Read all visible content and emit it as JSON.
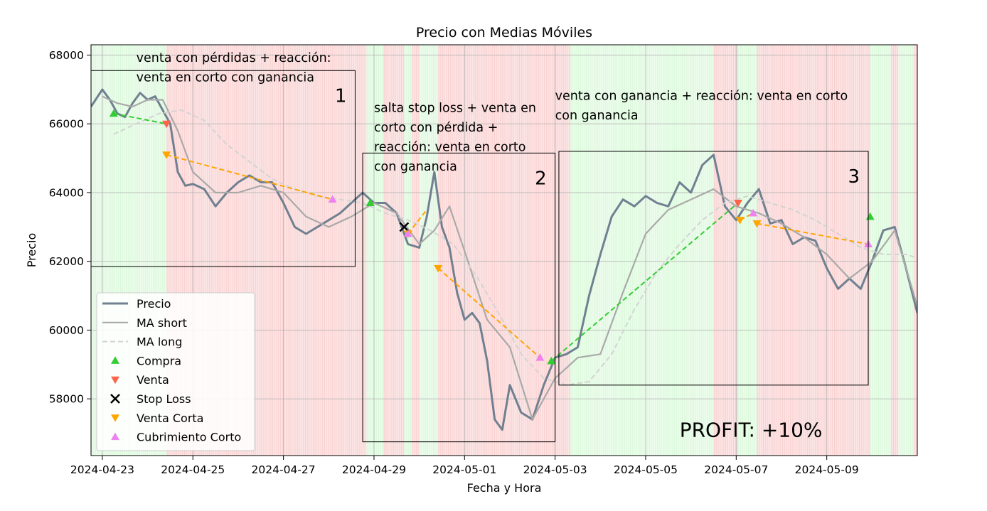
{
  "chart_data": {
    "type": "line",
    "title": "Precio con Medias Móviles",
    "xlabel": "Fecha y Hora",
    "ylabel": "Precio",
    "xlim": [
      "2024-04-22T18:00",
      "2024-05-11T00:00"
    ],
    "ylim": [
      56350,
      68300
    ],
    "grid": true,
    "legend_position": "lower-left",
    "x_ticks": [
      "2024-04-23",
      "2024-04-25",
      "2024-04-27",
      "2024-04-29",
      "2024-05-01",
      "2024-05-03",
      "2024-05-05",
      "2024-05-07",
      "2024-05-09"
    ],
    "y_ticks": [
      58000,
      60000,
      62000,
      64000,
      66000,
      68000
    ],
    "colors": {
      "price": "#708090",
      "ma_short": "#a9a9a9",
      "ma_long": "#d3d3d3",
      "buy": "#32cd32",
      "sell": "#ff6347",
      "stop_loss": "#000000",
      "short_sell": "#ffa500",
      "short_cover": "#ee82ee",
      "long_trade": "#32cd32",
      "short_trade": "#ffa500",
      "bg_green": "#90ee90",
      "bg_red": "#f08080"
    },
    "background_regions": [
      {
        "signal": "buy",
        "start": "2024-04-22T18:00",
        "end": "2024-04-24T10:00"
      },
      {
        "signal": "sell",
        "start": "2024-04-24T10:00",
        "end": "2024-04-28T20:00"
      },
      {
        "signal": "buy",
        "start": "2024-04-28T20:00",
        "end": "2024-04-29T05:00"
      },
      {
        "signal": "sell",
        "start": "2024-04-29T05:00",
        "end": "2024-04-29T16:00"
      },
      {
        "signal": "buy",
        "start": "2024-04-29T16:00",
        "end": "2024-04-29T20:00"
      },
      {
        "signal": "sell",
        "start": "2024-04-29T20:00",
        "end": "2024-04-30T00:00"
      },
      {
        "signal": "buy",
        "start": "2024-04-30T00:00",
        "end": "2024-04-30T10:00"
      },
      {
        "signal": "sell",
        "start": "2024-04-30T10:00",
        "end": "2024-05-03T08:00"
      },
      {
        "signal": "buy",
        "start": "2024-05-03T08:00",
        "end": "2024-05-06T12:00"
      },
      {
        "signal": "sell",
        "start": "2024-05-06T12:00",
        "end": "2024-05-07T01:00"
      },
      {
        "signal": "buy",
        "start": "2024-05-07T01:00",
        "end": "2024-05-07T11:00"
      },
      {
        "signal": "sell",
        "start": "2024-05-07T11:00",
        "end": "2024-05-09T23:00"
      },
      {
        "signal": "buy",
        "start": "2024-05-09T23:00",
        "end": "2024-05-10T10:00"
      },
      {
        "signal": "sell",
        "start": "2024-05-10T10:00",
        "end": "2024-05-10T14:00"
      },
      {
        "signal": "buy",
        "start": "2024-05-10T14:00",
        "end": "2024-05-10T22:00"
      },
      {
        "signal": "sell",
        "start": "2024-05-10T22:00",
        "end": "2024-05-11T00:00"
      }
    ],
    "series": [
      {
        "name": "Precio",
        "style": "solid-thick",
        "x": [
          "2024-04-22T18:00",
          "2024-04-23T00:00",
          "2024-04-23T04:00",
          "2024-04-23T08:00",
          "2024-04-23T12:00",
          "2024-04-23T16:00",
          "2024-04-23T20:00",
          "2024-04-24T00:00",
          "2024-04-24T04:00",
          "2024-04-24T08:00",
          "2024-04-24T12:00",
          "2024-04-24T16:00",
          "2024-04-24T20:00",
          "2024-04-25T00:00",
          "2024-04-25T06:00",
          "2024-04-25T12:00",
          "2024-04-25T18:00",
          "2024-04-26T00:00",
          "2024-04-26T06:00",
          "2024-04-26T12:00",
          "2024-04-26T18:00",
          "2024-04-27T00:00",
          "2024-04-27T06:00",
          "2024-04-27T12:00",
          "2024-04-27T18:00",
          "2024-04-28T00:00",
          "2024-04-28T06:00",
          "2024-04-28T12:00",
          "2024-04-28T18:00",
          "2024-04-29T00:00",
          "2024-04-29T06:00",
          "2024-04-29T12:00",
          "2024-04-29T18:00",
          "2024-04-30T00:00",
          "2024-04-30T04:00",
          "2024-04-30T08:00",
          "2024-04-30T12:00",
          "2024-04-30T16:00",
          "2024-04-30T20:00",
          "2024-05-01T00:00",
          "2024-05-01T04:00",
          "2024-05-01T08:00",
          "2024-05-01T12:00",
          "2024-05-01T16:00",
          "2024-05-01T20:00",
          "2024-05-02T00:00",
          "2024-05-02T06:00",
          "2024-05-02T12:00",
          "2024-05-02T18:00",
          "2024-05-03T00:00",
          "2024-05-03T06:00",
          "2024-05-03T12:00",
          "2024-05-03T18:00",
          "2024-05-04T00:00",
          "2024-05-04T06:00",
          "2024-05-04T12:00",
          "2024-05-04T18:00",
          "2024-05-05T00:00",
          "2024-05-05T06:00",
          "2024-05-05T12:00",
          "2024-05-05T18:00",
          "2024-05-06T00:00",
          "2024-05-06T06:00",
          "2024-05-06T12:00",
          "2024-05-06T18:00",
          "2024-05-07T00:00",
          "2024-05-07T06:00",
          "2024-05-07T12:00",
          "2024-05-07T18:00",
          "2024-05-08T00:00",
          "2024-05-08T06:00",
          "2024-05-08T12:00",
          "2024-05-08T18:00",
          "2024-05-09T00:00",
          "2024-05-09T06:00",
          "2024-05-09T12:00",
          "2024-05-09T18:00",
          "2024-05-10T00:00",
          "2024-05-10T06:00",
          "2024-05-10T12:00",
          "2024-05-10T18:00",
          "2024-05-11T00:00"
        ],
        "values": [
          66500,
          67000,
          66700,
          66300,
          66200,
          66600,
          66900,
          66700,
          66800,
          66400,
          66000,
          64600,
          64200,
          64250,
          64100,
          63600,
          64000,
          64300,
          64500,
          64300,
          64300,
          63700,
          63000,
          62800,
          63000,
          63200,
          63400,
          63700,
          64000,
          63700,
          63700,
          63400,
          62500,
          62400,
          63300,
          64600,
          63000,
          62400,
          61100,
          60300,
          60500,
          60200,
          59100,
          57400,
          57100,
          58400,
          57600,
          57400,
          58400,
          59200,
          59300,
          59500,
          61000,
          62200,
          63300,
          63800,
          63600,
          63900,
          63700,
          63600,
          64300,
          64000,
          64800,
          65100,
          63600,
          63200,
          63700,
          64100,
          63100,
          63200,
          62500,
          62700,
          62600,
          61800,
          61200,
          61500,
          61200,
          62000,
          62900,
          63000,
          61800,
          60500
        ]
      },
      {
        "name": "MA short",
        "style": "solid",
        "x": [
          "2024-04-23T00:00",
          "2024-04-23T08:00",
          "2024-04-23T16:00",
          "2024-04-24T00:00",
          "2024-04-24T08:00",
          "2024-04-24T16:00",
          "2024-04-25T00:00",
          "2024-04-25T12:00",
          "2024-04-26T00:00",
          "2024-04-26T12:00",
          "2024-04-27T00:00",
          "2024-04-27T12:00",
          "2024-04-28T00:00",
          "2024-04-28T12:00",
          "2024-04-29T00:00",
          "2024-04-29T12:00",
          "2024-04-30T00:00",
          "2024-04-30T08:00",
          "2024-04-30T16:00",
          "2024-05-01T00:00",
          "2024-05-01T12:00",
          "2024-05-02T00:00",
          "2024-05-02T12:00",
          "2024-05-03T00:00",
          "2024-05-03T12:00",
          "2024-05-04T00:00",
          "2024-05-04T12:00",
          "2024-05-05T00:00",
          "2024-05-05T12:00",
          "2024-05-06T00:00",
          "2024-05-06T12:00",
          "2024-05-07T00:00",
          "2024-05-07T12:00",
          "2024-05-08T00:00",
          "2024-05-08T12:00",
          "2024-05-09T00:00",
          "2024-05-09T12:00",
          "2024-05-10T00:00",
          "2024-05-10T12:00",
          "2024-05-11T00:00"
        ],
        "values": [
          66800,
          66600,
          66500,
          66700,
          66700,
          65800,
          64600,
          64000,
          64000,
          64200,
          64000,
          63300,
          63000,
          63300,
          63700,
          63400,
          62500,
          62900,
          63600,
          62300,
          60300,
          59500,
          57400,
          58600,
          59200,
          59300,
          61100,
          62800,
          63500,
          63800,
          64100,
          63600,
          63400,
          63100,
          62700,
          62200,
          61500,
          62000,
          62900,
          60700
        ]
      },
      {
        "name": "MA long",
        "style": "dashed",
        "x": [
          "2024-04-23T06:00",
          "2024-04-23T18:00",
          "2024-04-24T06:00",
          "2024-04-24T18:00",
          "2024-04-25T06:00",
          "2024-04-25T18:00",
          "2024-04-26T06:00",
          "2024-04-26T18:00",
          "2024-04-27T06:00",
          "2024-04-27T18:00",
          "2024-04-28T06:00",
          "2024-04-28T18:00",
          "2024-04-29T06:00",
          "2024-04-29T18:00",
          "2024-04-30T06:00",
          "2024-04-30T18:00",
          "2024-05-01T06:00",
          "2024-05-01T18:00",
          "2024-05-02T06:00",
          "2024-05-02T18:00",
          "2024-05-03T06:00",
          "2024-05-03T18:00",
          "2024-05-04T06:00",
          "2024-05-04T18:00",
          "2024-05-05T06:00",
          "2024-05-05T18:00",
          "2024-05-06T06:00",
          "2024-05-06T18:00",
          "2024-05-07T06:00",
          "2024-05-07T18:00",
          "2024-05-08T06:00",
          "2024-05-08T18:00",
          "2024-05-09T06:00",
          "2024-05-09T18:00",
          "2024-05-10T06:00",
          "2024-05-10T18:00",
          "2024-05-11T00:00"
        ],
        "values": [
          65700,
          66000,
          66300,
          66400,
          66100,
          65400,
          64900,
          64400,
          64100,
          63900,
          63800,
          63700,
          63400,
          63200,
          62900,
          62500,
          61600,
          60500,
          59300,
          58600,
          58400,
          58500,
          59300,
          60600,
          61700,
          62500,
          63200,
          63700,
          63900,
          63700,
          63500,
          63200,
          62800,
          62400,
          62200,
          62200,
          62100
        ]
      }
    ],
    "markers": [
      {
        "name": "Compra",
        "symbol": "triangle-up",
        "points": [
          {
            "x": "2024-04-23T06:00",
            "y": 66300
          },
          {
            "x": "2024-04-28T22:00",
            "y": 63700
          },
          {
            "x": "2024-05-02T22:00",
            "y": 59100
          },
          {
            "x": "2024-05-09T23:00",
            "y": 63300
          }
        ]
      },
      {
        "name": "Venta",
        "symbol": "triangle-down",
        "points": [
          {
            "x": "2024-04-24T10:00",
            "y": 66000
          },
          {
            "x": "2024-05-07T01:00",
            "y": 63700
          }
        ]
      },
      {
        "name": "Stop Loss",
        "symbol": "x",
        "points": [
          {
            "x": "2024-04-29T16:00",
            "y": 63000
          }
        ]
      },
      {
        "name": "Venta Corta",
        "symbol": "triangle-down",
        "points": [
          {
            "x": "2024-04-24T10:00",
            "y": 65100
          },
          {
            "x": "2024-04-29T18:00",
            "y": 62800
          },
          {
            "x": "2024-04-30T10:00",
            "y": 61800
          },
          {
            "x": "2024-05-07T02:00",
            "y": 63200
          },
          {
            "x": "2024-05-07T11:00",
            "y": 63100
          }
        ]
      },
      {
        "name": "Cubrimiento Corto",
        "symbol": "triangle-up",
        "points": [
          {
            "x": "2024-04-28T02:00",
            "y": 63800
          },
          {
            "x": "2024-04-29T18:00",
            "y": 62800
          },
          {
            "x": "2024-05-02T16:00",
            "y": 59200
          },
          {
            "x": "2024-05-07T09:00",
            "y": 63400
          },
          {
            "x": "2024-05-09T22:00",
            "y": 62500
          }
        ]
      }
    ],
    "trades": [
      {
        "type": "long",
        "from": {
          "x": "2024-04-23T06:00",
          "y": 66300
        },
        "to": {
          "x": "2024-04-24T10:00",
          "y": 66000
        }
      },
      {
        "type": "short",
        "from": {
          "x": "2024-04-24T10:00",
          "y": 65100
        },
        "to": {
          "x": "2024-04-28T02:00",
          "y": 63800
        }
      },
      {
        "type": "long",
        "from": {
          "x": "2024-04-28T22:00",
          "y": 63700
        },
        "to": {
          "x": "2024-04-28T22:00",
          "y": 63700
        }
      },
      {
        "type": "short",
        "from": {
          "x": "2024-04-29T18:00",
          "y": 62800
        },
        "to": {
          "x": "2024-04-30T04:00",
          "y": 63500
        }
      },
      {
        "type": "short",
        "from": {
          "x": "2024-04-30T10:00",
          "y": 61800
        },
        "to": {
          "x": "2024-05-02T16:00",
          "y": 59200
        }
      },
      {
        "type": "long",
        "from": {
          "x": "2024-05-02T22:00",
          "y": 59100
        },
        "to": {
          "x": "2024-05-07T01:00",
          "y": 63700
        }
      },
      {
        "type": "short",
        "from": {
          "x": "2024-05-07T02:00",
          "y": 63200
        },
        "to": {
          "x": "2024-05-07T09:00",
          "y": 63400
        }
      },
      {
        "type": "short",
        "from": {
          "x": "2024-05-07T11:00",
          "y": 63100
        },
        "to": {
          "x": "2024-05-09T22:00",
          "y": 62500
        }
      }
    ],
    "annotations": [
      {
        "id": "1",
        "box": {
          "x0": "2024-04-22T18:00",
          "x1": "2024-04-28T14:00",
          "y0": 61850,
          "y1": 67550
        },
        "number": "1",
        "text": [
          "venta con pérdidas + reacción:",
          "venta en corto con ganancia"
        ],
        "text_pos": {
          "x": "2024-04-23T18:00",
          "y": 67800
        }
      },
      {
        "id": "2",
        "box": {
          "x0": "2024-04-28T18:00",
          "x1": "2024-05-03T00:00",
          "y0": 56750,
          "y1": 65150
        },
        "number": "2",
        "text": [
          "salta stop loss + venta en",
          "corto con pérdida +",
          "reacción: venta en corto",
          "con ganancia"
        ],
        "text_pos": {
          "x": "2024-04-29T00:00",
          "y": 66350
        }
      },
      {
        "id": "3",
        "box": {
          "x0": "2024-05-03T02:00",
          "x1": "2024-05-09T22:00",
          "y0": 58400,
          "y1": 65200
        },
        "number": "3",
        "text": [
          "venta con ganancia + reacción: venta en corto",
          "con ganancia"
        ],
        "text_pos": {
          "x": "2024-05-03T00:00",
          "y": 66700
        }
      },
      {
        "id": "profit",
        "text": [
          "PROFIT: +10%"
        ],
        "text_pos": {
          "x": "2024-05-05T18:00",
          "y": 56900
        }
      }
    ]
  }
}
